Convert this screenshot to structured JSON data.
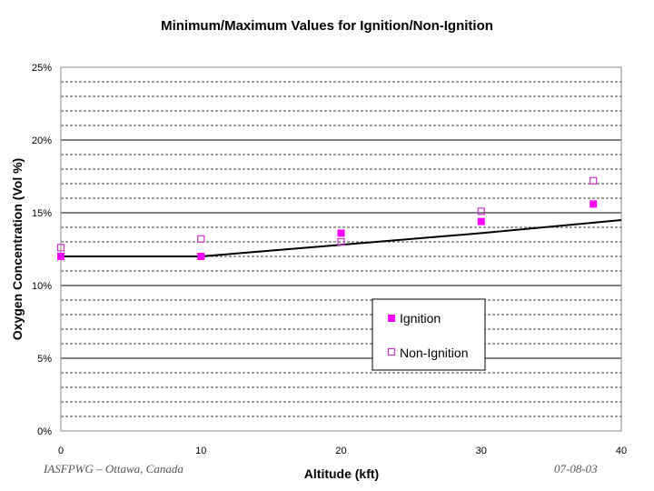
{
  "chart_data": {
    "type": "scatter",
    "title": "Minimum/Maximum Values for Ignition/Non-Ignition",
    "xlabel": "Altitude (kft)",
    "ylabel": "Oxygen Concentration (Vol %)",
    "xlim": [
      0,
      40
    ],
    "ylim": [
      0,
      25
    ],
    "x_ticks": [
      0,
      10,
      20,
      30,
      40
    ],
    "x_tick_labels": [
      "0",
      "10",
      "20",
      "30",
      "40"
    ],
    "y_ticks": [
      0,
      5,
      10,
      15,
      20,
      25
    ],
    "y_tick_labels": [
      "0%",
      "5%",
      "10%",
      "15%",
      "20%",
      "25%"
    ],
    "grid": "solid major and dashed minor horizontal gridlines",
    "legend_position": "bottom-right",
    "series": [
      {
        "name": "Ignition",
        "marker": "filled-square",
        "color": "#ff00ff",
        "points": [
          [
            0,
            12.0
          ],
          [
            10,
            12.0
          ],
          [
            20,
            13.6
          ],
          [
            30,
            14.4
          ],
          [
            38,
            15.6
          ]
        ]
      },
      {
        "name": "Non-Ignition",
        "marker": "open-square",
        "color": "#cc33cc",
        "points": [
          [
            0,
            12.6
          ],
          [
            10,
            13.2
          ],
          [
            20,
            13.0
          ],
          [
            30,
            15.1
          ],
          [
            38,
            17.2
          ]
        ]
      },
      {
        "marker": "line",
        "color": "#000000",
        "points": [
          [
            0,
            12.0
          ],
          [
            10,
            12.0
          ],
          [
            20,
            12.8
          ],
          [
            30,
            13.6
          ],
          [
            40,
            14.5
          ]
        ]
      }
    ]
  },
  "footer": {
    "left": "IASFPWG – Ottawa, Canada",
    "right": "07-08-03"
  }
}
